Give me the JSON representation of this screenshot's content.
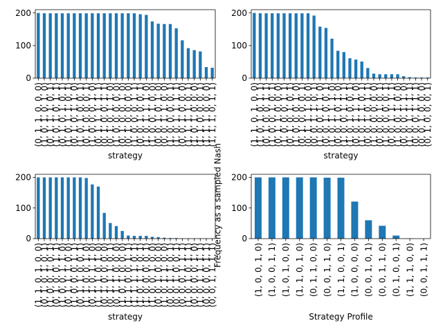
{
  "figure": {
    "shared_ylabel": "Frequency as a sampled Nash"
  },
  "chart_data": [
    {
      "type": "bar",
      "color": "#1f77b4",
      "xlabel": "strategy",
      "ylim": [
        0,
        210
      ],
      "yticks": [
        0,
        100,
        200
      ],
      "categories": [
        "(0, 1, 1, 0, 0, 0)",
        "(1, 0, 1, 0, 1, 0)",
        "(0, 1, 1, 1, 0, 1)",
        "(1, 0, 1, 0, 1, 1)",
        "(0, 1, 0, 1, 0, 1)",
        "(1, 0, 1, 1, 0, 1)",
        "(0, 1, 0, 1, 1, 0)",
        "(1, 0, 1, 0, 0, 1)",
        "(0, 1, 0, 0, 0, 1)",
        "(1, 0, 0, 0, 1, 0)",
        "(0, 1, 1, 1, 1, 1)",
        "(0, 1, 0, 0, 1, 1)",
        "(0, 1, 0, 1, 1, 0)",
        "(1, 0, 0, 0, 0, 0)",
        "(0, 1, 0, 0, 1, 0)",
        "(0, 1, 0, 0, 0, 0)",
        "(1, 0, 0, 0, 1, 1)",
        "(0, 0, 1, 0, 0, 1)",
        "(1, 0, 1, 1, 1, 0)",
        "(1, 0, 0, 1, 0, 0)",
        "(0, 0, 1, 0, 1, 0)",
        "(0, 0, 1, 1, 0, 0)",
        "(1, 0, 0, 0, 0, 1)",
        "(1, 0, 1, 1, 1, 1)",
        "(0, 0, 1, 0, 0, 0)",
        "(1, 1, 1, 1, 0, 1)",
        "(1, 0, 1, 0, 0, 0)",
        "(1, 1, 0, 0, 0, 1)",
        "(1, 1, 1, 0, 0, 0)",
        "(1, 1, 1, 0, 1, 1)"
      ],
      "values": [
        200,
        199,
        199,
        199,
        199,
        199,
        199,
        199,
        199,
        199,
        199,
        199,
        199,
        199,
        199,
        199,
        199,
        196,
        194,
        174,
        167,
        166,
        166,
        153,
        116,
        92,
        86,
        82,
        34,
        32
      ]
    },
    {
      "type": "bar",
      "color": "#1f77b4",
      "xlabel": "strategy",
      "ylim": [
        0,
        210
      ],
      "yticks": [
        0,
        100,
        200
      ],
      "categories": [
        "(1, 1, 0, 1, 0, 0)",
        "(1, 0, 1, 0, 1, 1)",
        "(0, 1, 0, 0, 1, 1)",
        "(1, 0, 0, 1, 0, 1)",
        "(0, 1, 1, 0, 0, 0)",
        "(1, 0, 0, 0, 1, 1)",
        "(0, 1, 0, 1, 0, 1)",
        "(1, 0, 0, 0, 1, 0)",
        "(0, 1, 0, 0, 0, 1)",
        "(0, 1, 1, 1, 0, 0)",
        "(0, 0, 1, 1, 0, 1)",
        "(1, 0, 0, 1, 1, 0)",
        "(0, 0, 1, 0, 0, 1)",
        "(1, 0, 1, 1, 1, 0)",
        "(0, 0, 1, 0, 1, 0)",
        "(1, 0, 0, 1, 1, 1)",
        "(1, 0, 1, 0, 0, 1)",
        "(0, 0, 1, 1, 1, 0)",
        "(1, 0, 1, 1, 0, 1)",
        "(0, 0, 1, 0, 1, 1)",
        "(1, 0, 0, 0, 0, 0)",
        "(0, 0, 0, 1, 0, 1)",
        "(1, 0, 0, 0, 0, 1)",
        "(0, 0, 1, 1, 1, 1)",
        "(1, 0, 0, 1, 0, 0)",
        "(0, 0, 0, 1, 1, 0)",
        "(1, 0, 1, 1, 1, 1)",
        "(0, 0, 0, 1, 1, 1)",
        "(0, 0, 1, 0, 0, 0)",
        "(0, 1, 0, 0, 0, 1)"
      ],
      "values": [
        200,
        199,
        199,
        199,
        199,
        199,
        199,
        199,
        199,
        199,
        192,
        158,
        154,
        121,
        84,
        80,
        61,
        57,
        51,
        31,
        14,
        12,
        12,
        12,
        12,
        6,
        3,
        2,
        2,
        2
      ]
    },
    {
      "type": "bar",
      "color": "#1f77b4",
      "xlabel": "strategy",
      "ylim": [
        0,
        210
      ],
      "yticks": [
        0,
        100,
        200
      ],
      "categories": [
        "(1, 1, 0, 1, 0, 0)",
        "(0, 1, 0, 1, 0, 1)",
        "(1, 0, 0, 1, 0, 1)",
        "(0, 1, 0, 0, 1, 1)",
        "(1, 0, 0, 1, 1, 0)",
        "(0, 1, 1, 1, 0, 0)",
        "(1, 0, 0, 0, 1, 1)",
        "(0, 1, 1, 0, 0, 1)",
        "(1, 1, 0, 0, 1, 0)",
        "(0, 1, 0, 1, 1, 0)",
        "(1, 1, 1, 0, 1, 0)",
        "(0, 1, 0, 0, 0, 0)",
        "(0, 1, 1, 1, 0, 1)",
        "(0, 1, 1, 0, 0, 0)",
        "(1, 0, 1, 0, 0, 0)",
        "(1, 1, 0, 0, 1, 1)",
        "(1, 1, 1, 1, 0, 1)",
        "(1, 0, 1, 1, 0, 1)",
        "(1, 0, 0, 0, 0, 1)",
        "(1, 0, 0, 1, 0, 0)",
        "(0, 0, 1, 0, 0, 0)",
        "(1, 0, 1, 1, 0, 0)",
        "(0, 0, 1, 1, 0, 1)",
        "(0, 0, 1, 0, 0, 1)",
        "(0, 0, 0, 1, 1, 1)",
        "(1, 0, 1, 0, 1, 1)",
        "(0, 0, 0, 0, 1, 0)",
        "(1, 0, 1, 1, 1, 1)",
        "(0, 0, 0, 0, 1, 1)",
        "(0, 0, 1, 1, 1, 1)"
      ],
      "values": [
        200,
        200,
        200,
        200,
        200,
        200,
        200,
        200,
        198,
        177,
        170,
        84,
        51,
        41,
        25,
        10,
        9,
        9,
        9,
        6,
        5,
        3,
        2,
        2,
        1,
        1,
        1,
        1,
        1,
        1
      ]
    },
    {
      "type": "bar",
      "color": "#1f77b4",
      "xlabel": "Strategy Profile",
      "ylim": [
        0,
        210
      ],
      "yticks": [
        0,
        100,
        200
      ],
      "categories": [
        "(1, 0, 0, 1, 0)",
        "(1, 0, 0, 1, 1)",
        "(1, 0, 1, 0, 0)",
        "(1, 1, 0, 1, 0)",
        "(0, 1, 1, 0, 0)",
        "(0, 0, 1, 1, 0)",
        "(1, 1, 0, 0, 1)",
        "(1, 0, 0, 0, 0)",
        "(0, 0, 1, 0, 1)",
        "(0, 0, 1, 1, 0)",
        "(0, 1, 0, 0, 1)",
        "(1, 1, 1, 0, 0)",
        "(0, 0, 1, 1, 1)"
      ],
      "values": [
        200,
        200,
        200,
        200,
        200,
        199,
        199,
        121,
        60,
        42,
        10,
        1,
        0
      ]
    }
  ]
}
